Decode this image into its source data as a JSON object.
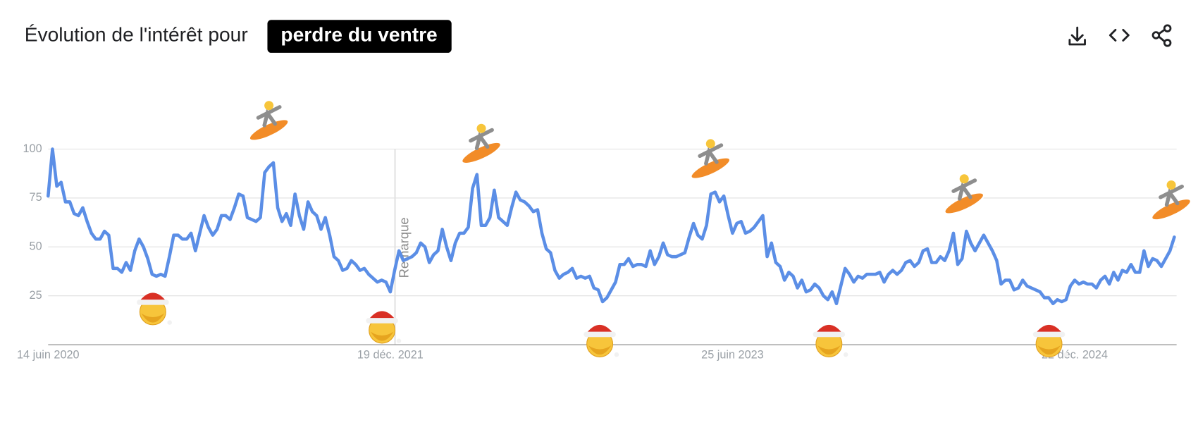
{
  "header": {
    "title": "Évolution de l'intérêt pour",
    "term": "perdre du ventre"
  },
  "chart_data": {
    "type": "line",
    "color": "#5b8ee6",
    "annotation": "Remarque",
    "ylim": [
      0,
      100
    ],
    "yticks": [
      25,
      50,
      75,
      100
    ],
    "grid": true,
    "categories": [
      "14 juin 2020",
      null,
      null,
      null,
      null,
      null,
      null,
      null,
      null,
      null,
      null,
      null,
      null,
      null,
      null,
      null,
      null,
      null,
      null,
      null,
      null,
      null,
      null,
      null,
      null,
      null,
      null,
      null,
      null,
      null,
      null,
      null,
      null,
      null,
      null,
      null,
      null,
      null,
      null,
      null,
      null,
      null,
      null,
      null,
      null,
      null,
      null,
      null,
      null,
      null,
      null,
      null,
      null,
      null,
      null,
      null,
      null,
      null,
      null,
      null,
      null,
      null,
      null,
      null,
      null,
      null,
      null,
      null,
      null,
      null,
      null,
      null,
      null,
      null,
      null,
      null,
      null,
      null,
      null,
      "19 déc. 2021",
      null,
      null,
      null,
      null,
      null,
      null,
      null,
      null,
      null,
      null,
      null,
      null,
      null,
      null,
      null,
      null,
      null,
      null,
      null,
      null,
      null,
      null,
      null,
      null,
      null,
      null,
      null,
      null,
      null,
      null,
      null,
      null,
      null,
      null,
      null,
      null,
      null,
      null,
      null,
      null,
      null,
      null,
      null,
      null,
      null,
      null,
      null,
      null,
      null,
      null,
      null,
      null,
      null,
      null,
      null,
      null,
      null,
      null,
      null,
      null,
      null,
      null,
      null,
      null,
      null,
      null,
      null,
      null,
      null,
      null,
      null,
      null,
      null,
      null,
      null,
      null,
      null,
      null,
      "25 juin 2023",
      null,
      null,
      null,
      null,
      null,
      null,
      null,
      null,
      null,
      null,
      null,
      null,
      null,
      null,
      null,
      null,
      null,
      null,
      null,
      null,
      null,
      null,
      null,
      null,
      null,
      null,
      null,
      null,
      null,
      null,
      null,
      null,
      null,
      null,
      null,
      null,
      null,
      null,
      null,
      null,
      null,
      null,
      null,
      null,
      null,
      null,
      null,
      null,
      null,
      null,
      null,
      null,
      null,
      null,
      null,
      null,
      null,
      null,
      null,
      null,
      null,
      null,
      null,
      null,
      null,
      null,
      null,
      null,
      null,
      null,
      null,
      null,
      null,
      null,
      null,
      null,
      null,
      null,
      "22 déc. 2024",
      null,
      null,
      null,
      null,
      null,
      null,
      null,
      null,
      null,
      null,
      null,
      null,
      null,
      null,
      null,
      null,
      null,
      null,
      null,
      null,
      null,
      null,
      null
    ],
    "values": [
      76,
      100,
      81,
      83,
      73,
      73,
      67,
      66,
      70,
      63,
      57,
      54,
      54,
      58,
      56,
      39,
      39,
      37,
      42,
      38,
      48,
      54,
      50,
      44,
      36,
      35,
      36,
      35,
      45,
      56,
      56,
      54,
      54,
      57,
      48,
      57,
      66,
      60,
      56,
      59,
      66,
      66,
      64,
      70,
      77,
      76,
      65,
      64,
      63,
      65,
      88,
      91,
      93,
      70,
      63,
      67,
      61,
      77,
      66,
      59,
      73,
      68,
      66,
      59,
      65,
      56,
      45,
      43,
      38,
      39,
      43,
      41,
      38,
      39,
      36,
      34,
      32,
      33,
      32,
      27,
      38,
      48,
      43,
      44,
      45,
      47,
      52,
      50,
      42,
      46,
      48,
      59,
      50,
      43,
      52,
      57,
      57,
      60,
      80,
      87,
      61,
      61,
      65,
      79,
      65,
      63,
      61,
      70,
      78,
      74,
      73,
      71,
      68,
      69,
      57,
      49,
      47,
      38,
      34,
      36,
      37,
      39,
      34,
      35,
      34,
      35,
      29,
      28,
      22,
      24,
      28,
      32,
      41,
      41,
      44,
      40,
      41,
      41,
      40,
      48,
      41,
      45,
      52,
      46,
      45,
      45,
      46,
      47,
      55,
      62,
      56,
      54,
      61,
      77,
      78,
      73,
      76,
      66,
      57,
      62,
      63,
      57,
      58,
      60,
      63,
      66,
      45,
      52,
      42,
      40,
      33,
      37,
      35,
      29,
      33,
      27,
      28,
      31,
      29,
      25,
      23,
      27,
      21,
      30,
      39,
      36,
      32,
      35,
      34,
      36,
      36,
      36,
      37,
      32,
      36,
      38,
      36,
      38,
      42,
      43,
      40,
      42,
      48,
      49,
      42,
      42,
      45,
      43,
      48,
      57,
      41,
      44,
      58,
      52,
      48,
      52,
      56,
      52,
      48,
      43,
      31,
      33,
      33,
      28,
      29,
      33,
      30,
      29,
      28,
      27,
      24,
      24,
      21,
      23,
      22,
      23,
      30,
      33,
      31,
      32,
      31,
      31,
      29,
      33,
      35,
      31,
      37,
      33,
      38,
      37,
      41,
      37,
      37,
      48,
      40,
      44,
      43,
      40,
      44,
      48,
      55
    ]
  }
}
